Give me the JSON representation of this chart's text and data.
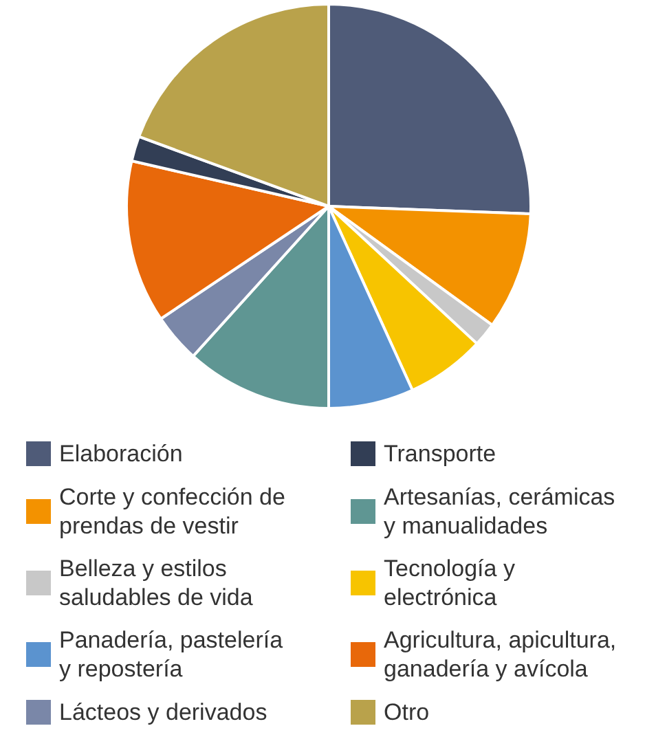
{
  "chart_data": {
    "type": "pie",
    "legend": "bottom",
    "categories": [
      "Elaboración",
      "Corte y confección de prendas de vestir",
      "Belleza y estilos saludables de vida",
      "Tecnología y electrónica",
      "Panadería, pastelería y repostería",
      "Artesanías, cerámicas y manualidades",
      "Lácteos y derivados",
      "Agricultura, apicultura, ganadería y avícola",
      "Transporte",
      "Otro"
    ],
    "values": [
      25.6,
      9.4,
      1.9,
      6.3,
      6.8,
      11.7,
      3.9,
      13.0,
      2.0,
      19.4
    ],
    "colors": [
      "#4f5b78",
      "#f39200",
      "#c8c8c8",
      "#f7c400",
      "#5b93cf",
      "#5f9693",
      "#7a87a8",
      "#e8680a",
      "#323e55",
      "#b9a24b"
    ]
  }
}
